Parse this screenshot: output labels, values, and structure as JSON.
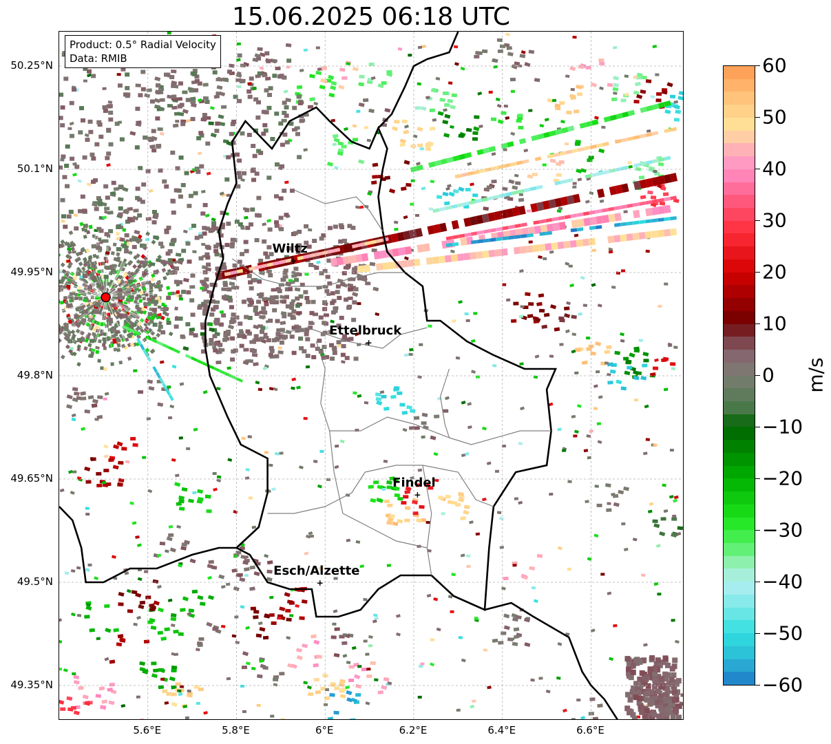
{
  "title": "15.06.2025 06:18 UTC",
  "info": {
    "product": "Product: 0.5° Radial Velocity",
    "data": "Data: RMIB"
  },
  "axes": {
    "lon_range": [
      5.4,
      6.8
    ],
    "lat_range": [
      49.3,
      50.3
    ],
    "lat_ticks": [
      {
        "value": 50.25,
        "label": "50.25°N"
      },
      {
        "value": 50.1,
        "label": "50.1°N"
      },
      {
        "value": 49.95,
        "label": "49.95°N"
      },
      {
        "value": 49.8,
        "label": "49.8°N"
      },
      {
        "value": 49.65,
        "label": "49.65°N"
      },
      {
        "value": 49.5,
        "label": "49.5°N"
      },
      {
        "value": 49.35,
        "label": "49.35°N"
      }
    ],
    "lon_ticks": [
      {
        "value": 5.6,
        "label": "5.6°E"
      },
      {
        "value": 5.8,
        "label": "5.8°E"
      },
      {
        "value": 6.0,
        "label": "6°E"
      },
      {
        "value": 6.2,
        "label": "6.2°E"
      },
      {
        "value": 6.4,
        "label": "6.4°E"
      },
      {
        "value": 6.6,
        "label": "6.6°E"
      }
    ]
  },
  "radar_site": {
    "lon": 5.505,
    "lat": 49.914,
    "color": "#ff0000"
  },
  "cities": [
    {
      "name": "Wiltz",
      "lon": 5.93,
      "lat": 49.966
    },
    {
      "name": "Ettelbruck",
      "lon": 6.1,
      "lat": 49.847
    },
    {
      "name": "Findel",
      "lon": 6.21,
      "lat": 49.626
    },
    {
      "name": "Esch/Alzette",
      "lon": 5.99,
      "lat": 49.498
    }
  ],
  "colorbar": {
    "label": "m/s",
    "min": -60,
    "max": 60,
    "ticks": [
      {
        "value": 60,
        "label": "60"
      },
      {
        "value": 50,
        "label": "50"
      },
      {
        "value": 40,
        "label": "40"
      },
      {
        "value": 30,
        "label": "30"
      },
      {
        "value": 20,
        "label": "20"
      },
      {
        "value": 10,
        "label": "10"
      },
      {
        "value": 0,
        "label": "0"
      },
      {
        "value": -10,
        "label": "−10"
      },
      {
        "value": -20,
        "label": "−20"
      },
      {
        "value": -30,
        "label": "−30"
      },
      {
        "value": -40,
        "label": "−40"
      },
      {
        "value": -50,
        "label": "−50"
      },
      {
        "value": -60,
        "label": "−60"
      }
    ],
    "stops": [
      {
        "value": -60,
        "color": "#1f78c8"
      },
      {
        "value": -55,
        "color": "#2bb8d6"
      },
      {
        "value": -50,
        "color": "#30dede"
      },
      {
        "value": -45,
        "color": "#7ae8e8"
      },
      {
        "value": -40,
        "color": "#b3eef0"
      },
      {
        "value": -36,
        "color": "#8cf0a8"
      },
      {
        "value": -33,
        "color": "#55f065"
      },
      {
        "value": -28,
        "color": "#1ee61e"
      },
      {
        "value": -20,
        "color": "#00b000"
      },
      {
        "value": -10,
        "color": "#006400"
      },
      {
        "value": -6,
        "color": "#4e7a4e"
      },
      {
        "value": 0,
        "color": "#7c7c72"
      },
      {
        "value": 4,
        "color": "#86666f"
      },
      {
        "value": 8,
        "color": "#7a2e36"
      },
      {
        "value": 10,
        "color": "#6e0000"
      },
      {
        "value": 20,
        "color": "#d40000"
      },
      {
        "value": 28,
        "color": "#ff2f3c"
      },
      {
        "value": 34,
        "color": "#ff5a80"
      },
      {
        "value": 40,
        "color": "#ff90c8"
      },
      {
        "value": 44,
        "color": "#ffb4b4"
      },
      {
        "value": 48,
        "color": "#ffe39a"
      },
      {
        "value": 54,
        "color": "#ffc27a"
      },
      {
        "value": 60,
        "color": "#ff9a50"
      }
    ]
  },
  "velocity_echoes": [
    {
      "lon": 5.62,
      "lat": 50.22,
      "v": 2
    },
    {
      "lon": 5.66,
      "lat": 50.2,
      "v": -4
    },
    {
      "lon": 5.7,
      "lat": 50.18,
      "v": 3
    },
    {
      "lon": 5.74,
      "lat": 50.21,
      "v": 1
    },
    {
      "lon": 5.78,
      "lat": 50.16,
      "v": -6
    },
    {
      "lon": 5.6,
      "lat": 50.15,
      "v": 2
    },
    {
      "lon": 5.83,
      "lat": 50.23,
      "v": 3
    },
    {
      "lon": 5.88,
      "lat": 50.26,
      "v": 2
    },
    {
      "lon": 5.98,
      "lat": 50.22,
      "v": -30
    },
    {
      "lon": 6.03,
      "lat": 50.24,
      "v": 45
    },
    {
      "lon": 5.94,
      "lat": 50.18,
      "v": 2
    },
    {
      "lon": 5.52,
      "lat": 50.05,
      "v": -3
    },
    {
      "lon": 5.58,
      "lat": 50.02,
      "v": 2
    },
    {
      "lon": 5.64,
      "lat": 49.98,
      "v": -5
    },
    {
      "lon": 5.7,
      "lat": 49.95,
      "v": 3
    },
    {
      "lon": 5.76,
      "lat": 49.92,
      "v": 2
    },
    {
      "lon": 5.82,
      "lat": 49.89,
      "v": 3
    },
    {
      "lon": 5.88,
      "lat": 49.87,
      "v": 1
    },
    {
      "lon": 5.9,
      "lat": 49.93,
      "v": 2
    },
    {
      "lon": 5.96,
      "lat": 49.9,
      "v": 3
    },
    {
      "lon": 6.02,
      "lat": 49.92,
      "v": 2
    },
    {
      "lon": 6.08,
      "lat": 49.94,
      "v": 3
    },
    {
      "lon": 6.12,
      "lat": 49.96,
      "v": 2
    },
    {
      "lon": 5.86,
      "lat": 49.83,
      "v": 2
    },
    {
      "lon": 5.8,
      "lat": 49.84,
      "v": 3
    },
    {
      "lon": 5.72,
      "lat": 49.86,
      "v": -8
    },
    {
      "lon": 5.6,
      "lat": 49.78,
      "v": 2
    },
    {
      "lon": 5.46,
      "lat": 49.76,
      "v": 3
    },
    {
      "lon": 5.55,
      "lat": 49.7,
      "v": 20
    },
    {
      "lon": 5.5,
      "lat": 49.66,
      "v": 15
    },
    {
      "lon": 5.7,
      "lat": 49.62,
      "v": -25
    },
    {
      "lon": 5.66,
      "lat": 49.55,
      "v": 3
    },
    {
      "lon": 5.78,
      "lat": 49.53,
      "v": 2
    },
    {
      "lon": 5.84,
      "lat": 49.51,
      "v": 3
    },
    {
      "lon": 5.5,
      "lat": 49.45,
      "v": -22
    },
    {
      "lon": 5.56,
      "lat": 49.4,
      "v": 15
    },
    {
      "lon": 5.62,
      "lat": 49.36,
      "v": -20
    },
    {
      "lon": 5.68,
      "lat": 49.33,
      "v": 50
    },
    {
      "lon": 5.95,
      "lat": 49.4,
      "v": 42
    },
    {
      "lon": 6.0,
      "lat": 49.35,
      "v": 50
    },
    {
      "lon": 6.05,
      "lat": 49.32,
      "v": -55
    },
    {
      "lon": 5.88,
      "lat": 49.44,
      "v": 12
    },
    {
      "lon": 5.92,
      "lat": 49.47,
      "v": 15
    },
    {
      "lon": 6.28,
      "lat": 49.61,
      "v": 50
    },
    {
      "lon": 6.18,
      "lat": 49.6,
      "v": 52
    },
    {
      "lon": 6.14,
      "lat": 49.63,
      "v": -25
    },
    {
      "lon": 6.22,
      "lat": 49.62,
      "v": 25
    },
    {
      "lon": 6.23,
      "lat": 49.73,
      "v": 3
    },
    {
      "lon": 6.16,
      "lat": 49.76,
      "v": -50
    },
    {
      "lon": 6.42,
      "lat": 49.43,
      "v": 2
    },
    {
      "lon": 6.45,
      "lat": 49.52,
      "v": 42
    },
    {
      "lon": 6.62,
      "lat": 49.31,
      "v": 3
    },
    {
      "lon": 6.75,
      "lat": 49.3,
      "v": 3
    },
    {
      "lon": 6.78,
      "lat": 49.33,
      "v": 2
    },
    {
      "lon": 6.65,
      "lat": 49.62,
      "v": 2
    },
    {
      "lon": 6.78,
      "lat": 49.58,
      "v": -6
    },
    {
      "lon": 6.45,
      "lat": 49.9,
      "v": 12
    },
    {
      "lon": 6.52,
      "lat": 49.88,
      "v": 10
    },
    {
      "lon": 6.6,
      "lat": 49.84,
      "v": 52
    },
    {
      "lon": 6.7,
      "lat": 49.82,
      "v": -15
    },
    {
      "lon": 6.78,
      "lat": 49.81,
      "v": 20
    },
    {
      "lon": 6.68,
      "lat": 49.8,
      "v": -52
    },
    {
      "lon": 6.55,
      "lat": 50.2,
      "v": 52
    },
    {
      "lon": 6.6,
      "lat": 50.24,
      "v": 42
    },
    {
      "lon": 6.68,
      "lat": 50.22,
      "v": -36
    },
    {
      "lon": 6.74,
      "lat": 50.21,
      "v": 14
    },
    {
      "lon": 6.78,
      "lat": 50.19,
      "v": -50
    },
    {
      "lon": 6.4,
      "lat": 50.18,
      "v": -30
    },
    {
      "lon": 6.3,
      "lat": 50.16,
      "v": -15
    },
    {
      "lon": 6.45,
      "lat": 50.25,
      "v": 3
    },
    {
      "lon": 6.38,
      "lat": 50.28,
      "v": 2
    },
    {
      "lon": 6.25,
      "lat": 50.2,
      "v": -36
    },
    {
      "lon": 6.2,
      "lat": 50.15,
      "v": 50
    },
    {
      "lon": 6.12,
      "lat": 50.24,
      "v": -35
    },
    {
      "lon": 6.1,
      "lat": 50.18,
      "v": 2
    },
    {
      "lon": 6.05,
      "lat": 50.13,
      "v": -33
    },
    {
      "lon": 6.15,
      "lat": 50.09,
      "v": 12
    },
    {
      "lon": 6.3,
      "lat": 50.05,
      "v": -50
    },
    {
      "lon": 6.4,
      "lat": 50.06,
      "v": 3
    },
    {
      "lon": 6.5,
      "lat": 50.09,
      "v": 45
    },
    {
      "lon": 6.6,
      "lat": 50.12,
      "v": -20
    },
    {
      "lon": 6.72,
      "lat": 50.1,
      "v": -36
    },
    {
      "lon": 6.76,
      "lat": 50.07,
      "v": 30
    },
    {
      "lon": 5.7,
      "lat": 49.47,
      "v": -20
    },
    {
      "lon": 5.74,
      "lat": 49.42,
      "v": 2
    },
    {
      "lon": 5.64,
      "lat": 49.44,
      "v": -25
    },
    {
      "lon": 5.58,
      "lat": 49.48,
      "v": 12
    },
    {
      "lon": 5.48,
      "lat": 49.34,
      "v": 42
    },
    {
      "lon": 5.44,
      "lat": 49.31,
      "v": 30
    },
    {
      "lon": 5.86,
      "lat": 49.38,
      "v": 2
    },
    {
      "lon": 6.06,
      "lat": 49.41,
      "v": 3
    },
    {
      "lon": 6.1,
      "lat": 49.36,
      "v": 42
    }
  ],
  "velocity_rays": [
    {
      "lon1": 5.76,
      "lat1": 49.945,
      "lon2": 6.8,
      "lat2": 50.09,
      "v": 12,
      "width": 12
    },
    {
      "lon1": 6.02,
      "lat1": 49.965,
      "lon2": 6.8,
      "lat2": 50.045,
      "v": 42,
      "width": 11
    },
    {
      "lon1": 6.08,
      "lat1": 49.955,
      "lon2": 6.8,
      "lat2": 50.01,
      "v": 46,
      "width": 10
    },
    {
      "lon1": 5.78,
      "lat1": 49.948,
      "lon2": 6.15,
      "lat2": 50.0,
      "v": 44,
      "width": 5
    },
    {
      "lon1": 6.2,
      "lat1": 50.1,
      "lon2": 6.8,
      "lat2": 50.2,
      "v": -30,
      "width": 7
    },
    {
      "lon1": 6.3,
      "lat1": 50.09,
      "lon2": 6.8,
      "lat2": 50.16,
      "v": 50,
      "width": 5
    },
    {
      "lon1": 6.25,
      "lat1": 50.04,
      "lon2": 6.8,
      "lat2": 50.12,
      "v": -40,
      "width": 5
    },
    {
      "lon1": 6.28,
      "lat1": 50.0,
      "lon2": 6.8,
      "lat2": 50.06,
      "v": 35,
      "width": 5
    },
    {
      "lon1": 6.28,
      "lat1": 49.99,
      "lon2": 6.8,
      "lat2": 50.03,
      "v": -55,
      "width": 5
    },
    {
      "lon1": 5.55,
      "lat1": 49.87,
      "lon2": 5.82,
      "lat2": 49.79,
      "v": -30,
      "width": 4
    },
    {
      "lon1": 5.58,
      "lat1": 49.85,
      "lon2": 5.66,
      "lat2": 49.76,
      "v": -50,
      "width": 4
    }
  ],
  "ground_clutter": {
    "lon": 5.505,
    "lat": 49.914,
    "radius_deg": 0.16
  }
}
